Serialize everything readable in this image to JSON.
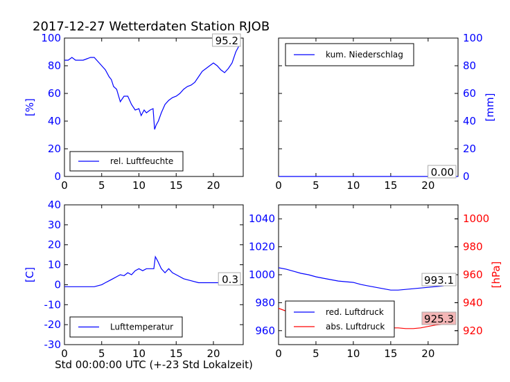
{
  "title": "2017-12-27 Wetterdaten Station RJOB",
  "xlabel_bottom": "Std 00:00:00 UTC (+-23 Std Lokalzeit)",
  "colors": {
    "blue": "#0000ff",
    "red": "#ff0000",
    "axis": "#000000",
    "redbox": "#f4b6b6"
  },
  "chart_data": [
    {
      "type": "line",
      "id": "humidity",
      "ylabel": "[%]",
      "xlim": [
        0,
        24
      ],
      "ylim": [
        0,
        100
      ],
      "xticks": [
        0,
        5,
        10,
        15,
        20
      ],
      "yticks": [
        0,
        20,
        40,
        60,
        80,
        100
      ],
      "series": [
        {
          "name": "rel. Luftfeuchte",
          "color": "#0000ff",
          "x": [
            0,
            0.5,
            1,
            1.5,
            2,
            2.5,
            3,
            3.5,
            4,
            4.5,
            5,
            5.5,
            6,
            6.3,
            6.6,
            7,
            7.5,
            8,
            8.5,
            9,
            9.5,
            10,
            10.3,
            10.7,
            11,
            11.5,
            11.9,
            12.1,
            12.3,
            12.6,
            13,
            13.5,
            14,
            14.5,
            15,
            15.5,
            16,
            16.5,
            17,
            17.5,
            18,
            18.5,
            19,
            19.5,
            20,
            20.5,
            21,
            21.5,
            22,
            22.5,
            23,
            23.5
          ],
          "y": [
            84,
            84,
            86,
            84,
            84,
            84,
            85,
            86,
            86,
            83,
            80,
            77,
            72,
            70,
            65,
            63,
            54,
            58,
            58,
            52,
            48,
            49,
            44,
            48,
            46,
            48,
            49,
            34,
            37,
            40,
            46,
            52,
            55,
            57,
            58,
            60,
            63,
            65,
            66,
            68,
            72,
            76,
            78,
            80,
            82,
            80,
            77,
            75,
            78,
            82,
            90,
            95
          ]
        }
      ],
      "annotation": "95.2",
      "legend_position": "bottom-center"
    },
    {
      "type": "line",
      "id": "precipitation",
      "ylabel": "[mm]",
      "xlim": [
        0,
        24
      ],
      "ylim": [
        0,
        100
      ],
      "xticks": [
        0,
        5,
        10,
        15,
        20
      ],
      "yticks": [
        0,
        20,
        40,
        60,
        80,
        100
      ],
      "series": [
        {
          "name": "kum. Niederschlag",
          "color": "#0000ff",
          "x": [
            0,
            24
          ],
          "y": [
            0,
            0
          ]
        }
      ],
      "annotation": "0.00",
      "legend_position": "top-left"
    },
    {
      "type": "line",
      "id": "temperature",
      "ylabel": "[C]",
      "xlim": [
        0,
        24
      ],
      "ylim": [
        -30,
        40
      ],
      "xticks": [
        0,
        5,
        10,
        15,
        20
      ],
      "yticks": [
        -30,
        -20,
        -10,
        0,
        10,
        20,
        30,
        40
      ],
      "series": [
        {
          "name": "Lufttemperatur",
          "color": "#0000ff",
          "x": [
            0,
            1,
            2,
            3,
            4,
            5,
            5.5,
            6,
            6.5,
            7,
            7.5,
            8,
            8.5,
            9,
            9.5,
            10,
            10.5,
            11,
            11.5,
            12,
            12.2,
            12.5,
            13,
            13.5,
            14,
            14.5,
            15,
            16,
            17,
            18,
            19,
            20,
            21,
            22,
            23
          ],
          "y": [
            -1,
            -1,
            -1,
            -1,
            -1,
            0,
            1,
            2,
            3,
            4,
            5,
            4.5,
            6,
            5,
            7,
            8,
            7,
            8,
            8,
            8,
            14,
            12,
            8,
            6,
            8,
            6,
            5,
            3,
            2,
            1,
            1,
            1,
            1,
            0.3,
            0.3
          ]
        }
      ],
      "annotation": "0.3",
      "legend_position": "bottom-center"
    },
    {
      "type": "line",
      "id": "pressure",
      "ylabel_right": "[hPa]",
      "xlim": [
        0,
        24
      ],
      "ylim_left": [
        950,
        1050
      ],
      "ylim_right": [
        910,
        1010
      ],
      "xticks": [
        0,
        5,
        10,
        15,
        20
      ],
      "yticks_left": [
        960,
        980,
        1000,
        1020,
        1040
      ],
      "yticks_right": [
        920,
        940,
        960,
        980,
        1000
      ],
      "series": [
        {
          "name": "red. Luftdruck",
          "color": "#0000ff",
          "axis": "left",
          "x": [
            0,
            1,
            2,
            3,
            4,
            5,
            6,
            7,
            8,
            9,
            10,
            11,
            12,
            13,
            14,
            15,
            16,
            17,
            18,
            19,
            20,
            21,
            22,
            23,
            23.5
          ],
          "y": [
            1005,
            1004,
            1002.5,
            1001,
            1000,
            998.5,
            997.5,
            996.5,
            995.5,
            995,
            994.5,
            993,
            992,
            991,
            990,
            989,
            989,
            989.5,
            990,
            990.5,
            991,
            991.5,
            992,
            993,
            993.1
          ]
        },
        {
          "name": "abs. Luftdruck",
          "color": "#ff0000",
          "axis": "right",
          "x": [
            0,
            1,
            2,
            3,
            4,
            5,
            6,
            7,
            8,
            9,
            10,
            11,
            12,
            12.5,
            13,
            13.5,
            14,
            15,
            16,
            17,
            18,
            19,
            20,
            21,
            22,
            23,
            23.5
          ],
          "y": [
            936,
            934,
            933,
            932,
            931,
            930,
            929,
            928.5,
            928,
            928,
            927.5,
            927,
            926,
            927,
            925,
            924,
            923,
            922,
            922,
            921.5,
            921.5,
            922,
            923,
            924,
            924.5,
            925.5,
            925.3
          ]
        }
      ],
      "annotations": [
        "993.1",
        "925.3"
      ],
      "legend_position": "bottom-left"
    }
  ]
}
